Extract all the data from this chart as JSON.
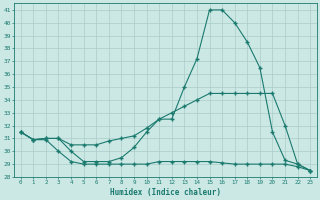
{
  "xlabel": "Humidex (Indice chaleur)",
  "bg_color": "#cce8e5",
  "grid_color": "#b0d8d4",
  "line_color": "#1a7a6e",
  "xlim": [
    -0.5,
    23.5
  ],
  "ylim": [
    28,
    41.5
  ],
  "yticks": [
    28,
    29,
    30,
    31,
    32,
    33,
    34,
    35,
    36,
    37,
    38,
    39,
    40,
    41
  ],
  "xticks": [
    0,
    1,
    2,
    3,
    4,
    5,
    6,
    7,
    8,
    9,
    10,
    11,
    12,
    13,
    14,
    15,
    16,
    17,
    18,
    19,
    20,
    21,
    22,
    23
  ],
  "line1": [
    31.5,
    30.9,
    31.0,
    31.0,
    30.0,
    29.2,
    29.2,
    29.2,
    29.5,
    30.3,
    31.5,
    32.5,
    32.5,
    35.0,
    37.2,
    41.0,
    41.0,
    40.0,
    38.5,
    36.5,
    31.5,
    29.3,
    29.0,
    28.5
  ],
  "line2": [
    31.5,
    30.9,
    31.0,
    31.0,
    30.5,
    30.5,
    30.5,
    30.8,
    31.0,
    31.2,
    31.8,
    32.5,
    33.0,
    33.5,
    34.0,
    34.5,
    34.5,
    34.5,
    34.5,
    34.5,
    34.5,
    32.0,
    29.0,
    28.5
  ],
  "line3": [
    31.5,
    30.9,
    30.9,
    30.0,
    29.2,
    29.0,
    29.0,
    29.0,
    29.0,
    29.0,
    29.0,
    29.2,
    29.2,
    29.2,
    29.2,
    29.2,
    29.1,
    29.0,
    29.0,
    29.0,
    29.0,
    29.0,
    28.8,
    28.5
  ]
}
